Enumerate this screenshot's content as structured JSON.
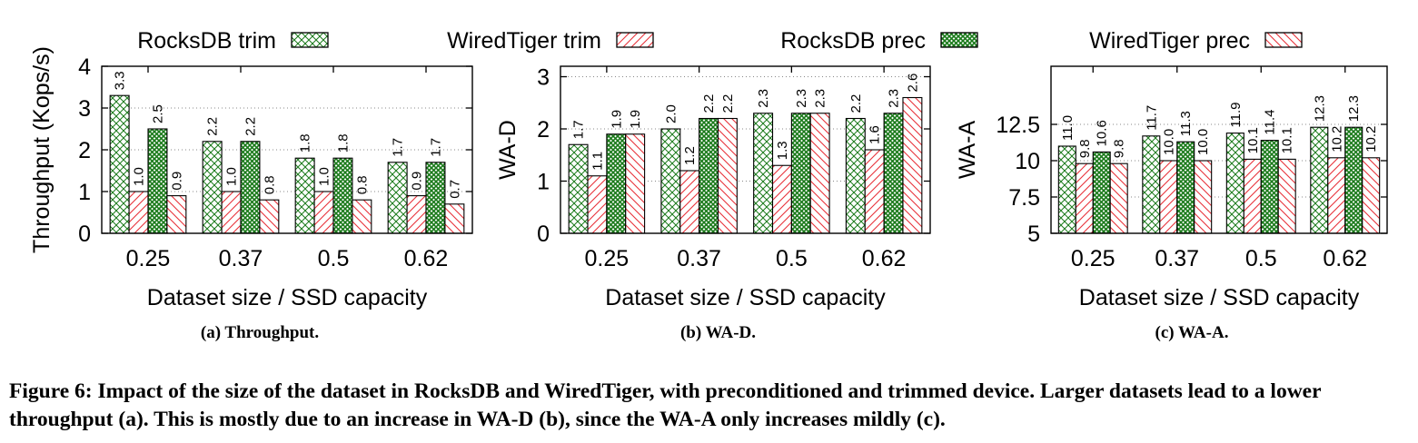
{
  "legend": [
    {
      "label": "RocksDB trim",
      "color": "#1a7a1a",
      "pattern": "crosshatch-light"
    },
    {
      "label": "WiredTiger trim",
      "color": "#e8323a",
      "pattern": "diagonal-up"
    },
    {
      "label": "RocksDB prec",
      "color": "#1a7a1a",
      "pattern": "crosshatch-dense"
    },
    {
      "label": "WiredTiger prec",
      "color": "#e8323a",
      "pattern": "diagonal-down"
    }
  ],
  "caption": {
    "text": "Figure 6: Impact of the size of the dataset in RocksDB and WiredTiger, with preconditioned and trimmed device. Larger datasets lead to a lower throughput (a). This is mostly due to an increase in WA-D (b), since the WA-A only increases mildly (c)."
  },
  "chart_data": [
    {
      "type": "bar",
      "subcaption": "(a) Throughput.",
      "xlabel": "Dataset size / SSD capacity",
      "ylabel": "Throughput (Kops/s)",
      "categories": [
        "0.25",
        "0.37",
        "0.5",
        "0.62"
      ],
      "ylim": [
        0,
        4
      ],
      "yticks": [
        0,
        1,
        2,
        3,
        4
      ],
      "ytick_labels": [
        "0",
        "1",
        "2",
        "3",
        "4"
      ],
      "grid": true,
      "series": [
        {
          "name": "RocksDB trim",
          "values": [
            3.3,
            2.2,
            1.8,
            1.7
          ],
          "labels": [
            "3.3",
            "2.2",
            "1.8",
            "1.7"
          ]
        },
        {
          "name": "WiredTiger trim",
          "values": [
            1.0,
            1.0,
            1.0,
            0.9
          ],
          "labels": [
            "1.0",
            "1.0",
            "1.0",
            "0.9"
          ]
        },
        {
          "name": "RocksDB prec",
          "values": [
            2.5,
            2.2,
            1.8,
            1.7
          ],
          "labels": [
            "2.5",
            "2.2",
            "1.8",
            "1.7"
          ]
        },
        {
          "name": "WiredTiger prec",
          "values": [
            0.9,
            0.8,
            0.8,
            0.7
          ],
          "labels": [
            "0.9",
            "0.8",
            "0.8",
            "0.7"
          ]
        }
      ]
    },
    {
      "type": "bar",
      "subcaption": "(b) WA-D.",
      "xlabel": "Dataset size / SSD capacity",
      "ylabel": "WA-D",
      "categories": [
        "0.25",
        "0.37",
        "0.5",
        "0.62"
      ],
      "ylim": [
        0,
        3.2
      ],
      "yticks": [
        0,
        1,
        2,
        3
      ],
      "ytick_labels": [
        "0",
        "1",
        "2",
        "3"
      ],
      "grid": true,
      "series": [
        {
          "name": "RocksDB trim",
          "values": [
            1.7,
            2.0,
            2.3,
            2.2
          ],
          "labels": [
            "1.7",
            "2.0",
            "2.3",
            "2.2"
          ]
        },
        {
          "name": "WiredTiger trim",
          "values": [
            1.1,
            1.2,
            1.3,
            1.6
          ],
          "labels": [
            "1.1",
            "1.2",
            "1.3",
            "1.6"
          ]
        },
        {
          "name": "RocksDB prec",
          "values": [
            1.9,
            2.2,
            2.3,
            2.3
          ],
          "labels": [
            "1.9",
            "2.2",
            "2.3",
            "2.3"
          ]
        },
        {
          "name": "WiredTiger prec",
          "values": [
            1.9,
            2.2,
            2.3,
            2.6
          ],
          "labels": [
            "1.9",
            "2.2",
            "2.3",
            "2.6"
          ]
        }
      ]
    },
    {
      "type": "bar",
      "subcaption": "(c) WA-A.",
      "xlabel": "Dataset size / SSD capacity",
      "ylabel": "WA-A",
      "categories": [
        "0.25",
        "0.37",
        "0.5",
        "0.62"
      ],
      "ylim": [
        5,
        16.5
      ],
      "yticks": [
        5,
        7.5,
        10,
        12.5
      ],
      "ytick_labels": [
        "5",
        "7.5",
        "10",
        "12.5"
      ],
      "grid": true,
      "series": [
        {
          "name": "RocksDB trim",
          "values": [
            11.0,
            11.7,
            11.9,
            12.3
          ],
          "labels": [
            "11.0",
            "11.7",
            "11.9",
            "12.3"
          ]
        },
        {
          "name": "WiredTiger trim",
          "values": [
            9.8,
            10.0,
            10.1,
            10.2
          ],
          "labels": [
            "9.8",
            "10.0",
            "10.1",
            "10.2"
          ]
        },
        {
          "name": "RocksDB prec",
          "values": [
            10.6,
            11.3,
            11.4,
            12.3
          ],
          "labels": [
            "10.6",
            "11.3",
            "11.4",
            "12.3"
          ]
        },
        {
          "name": "WiredTiger prec",
          "values": [
            9.8,
            10.0,
            10.1,
            10.2
          ],
          "labels": [
            "9.8",
            "10.0",
            "10.1",
            "10.2"
          ]
        }
      ]
    }
  ]
}
